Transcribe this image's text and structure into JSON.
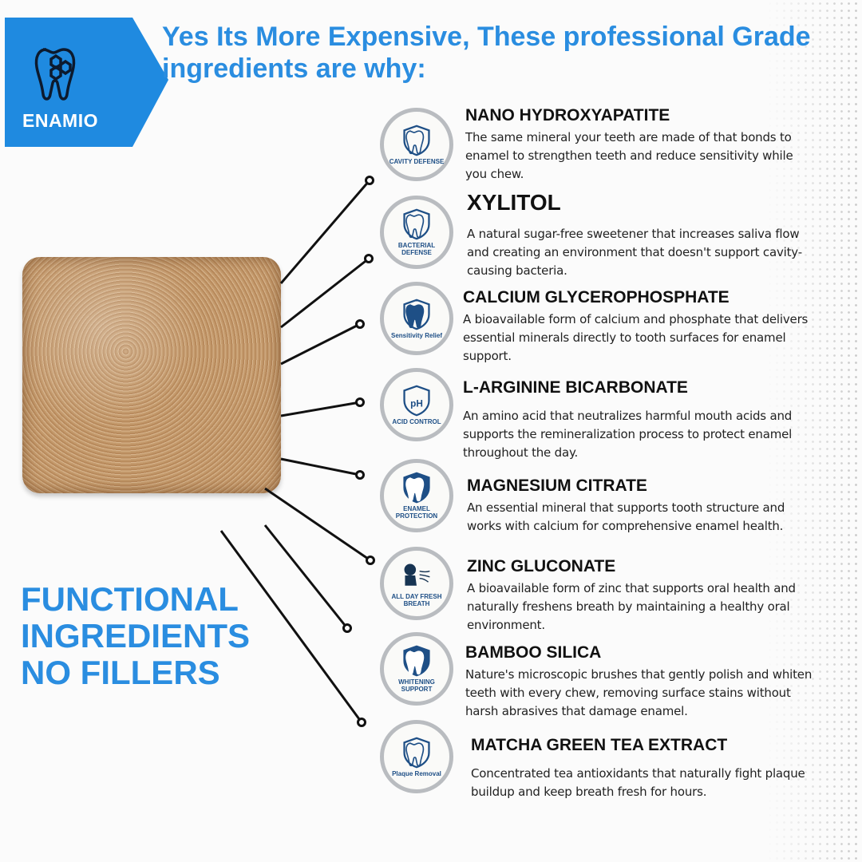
{
  "brand": {
    "name": "ENAMIO",
    "color": "#1f8ae0",
    "icon": "tooth-molecule-icon"
  },
  "headline": "Yes Its More Expensive, These professional Grade ingredients are why:",
  "tagline": [
    "FUNCTIONAL",
    "INGREDIENTS",
    "NO FILLERS"
  ],
  "colors": {
    "accent": "#2a8de0",
    "badge_ring": "#b9bcc0",
    "icon_blue": "#1e4f86"
  },
  "ingredients": [
    {
      "title": "NANO HYDROXYAPATITE",
      "badge": "CAVITY DEFENSE",
      "icon": "tooth-hexagon-icon",
      "desc": "The same mineral your teeth are made of that bonds to enamel to strengthen teeth and reduce sensitivity while you chew."
    },
    {
      "title": "XYLITOL",
      "badge": "BACTERIAL DEFENSE",
      "icon": "tooth-shield-bacteria-icon",
      "desc": "A natural sugar-free sweetener that increases saliva flow and creating an environment that doesn't support cavity-causing bacteria."
    },
    {
      "title": "CALCIUM GLYCEROPHOSPHATE",
      "badge": "Sensitivity Relief",
      "icon": "tooth-shield-icon",
      "desc": "A bioavailable form of calcium and phosphate that delivers essential minerals directly to tooth surfaces for enamel support."
    },
    {
      "title": "L-ARGININE BICARBONATE",
      "badge": "ACID CONTROL",
      "icon": "ph-drop-icon",
      "desc": "An amino acid that neutralizes harmful mouth acids and supports the remineralization process to protect enamel throughout the day."
    },
    {
      "title": "MAGNESIUM CITRATE",
      "badge": "ENAMEL PROTECTION",
      "icon": "tooth-shield-sparkle-icon",
      "desc": "An essential mineral that supports tooth structure and works with calcium for comprehensive enamel health."
    },
    {
      "title": "ZINC GLUCONATE",
      "badge": "ALL DAY FRESH BREATH",
      "icon": "head-breath-icon",
      "desc": "A bioavailable form of zinc that supports oral health and naturally freshens breath by maintaining a healthy oral environment."
    },
    {
      "title": "BAMBOO SILICA",
      "badge": "WHITENING SUPPORT",
      "icon": "tooth-shield-sparkle-icon",
      "desc": "Nature's microscopic brushes that gently polish and whiten teeth with every chew, removing surface stains without harsh abrasives that damage enamel."
    },
    {
      "title": "MATCHA GREEN TEA EXTRACT",
      "badge": "Plaque Removal",
      "icon": "tooth-shield-outline-icon",
      "desc": "Concentrated tea antioxidants that naturally fight plaque buildup and keep breath fresh for hours."
    }
  ]
}
